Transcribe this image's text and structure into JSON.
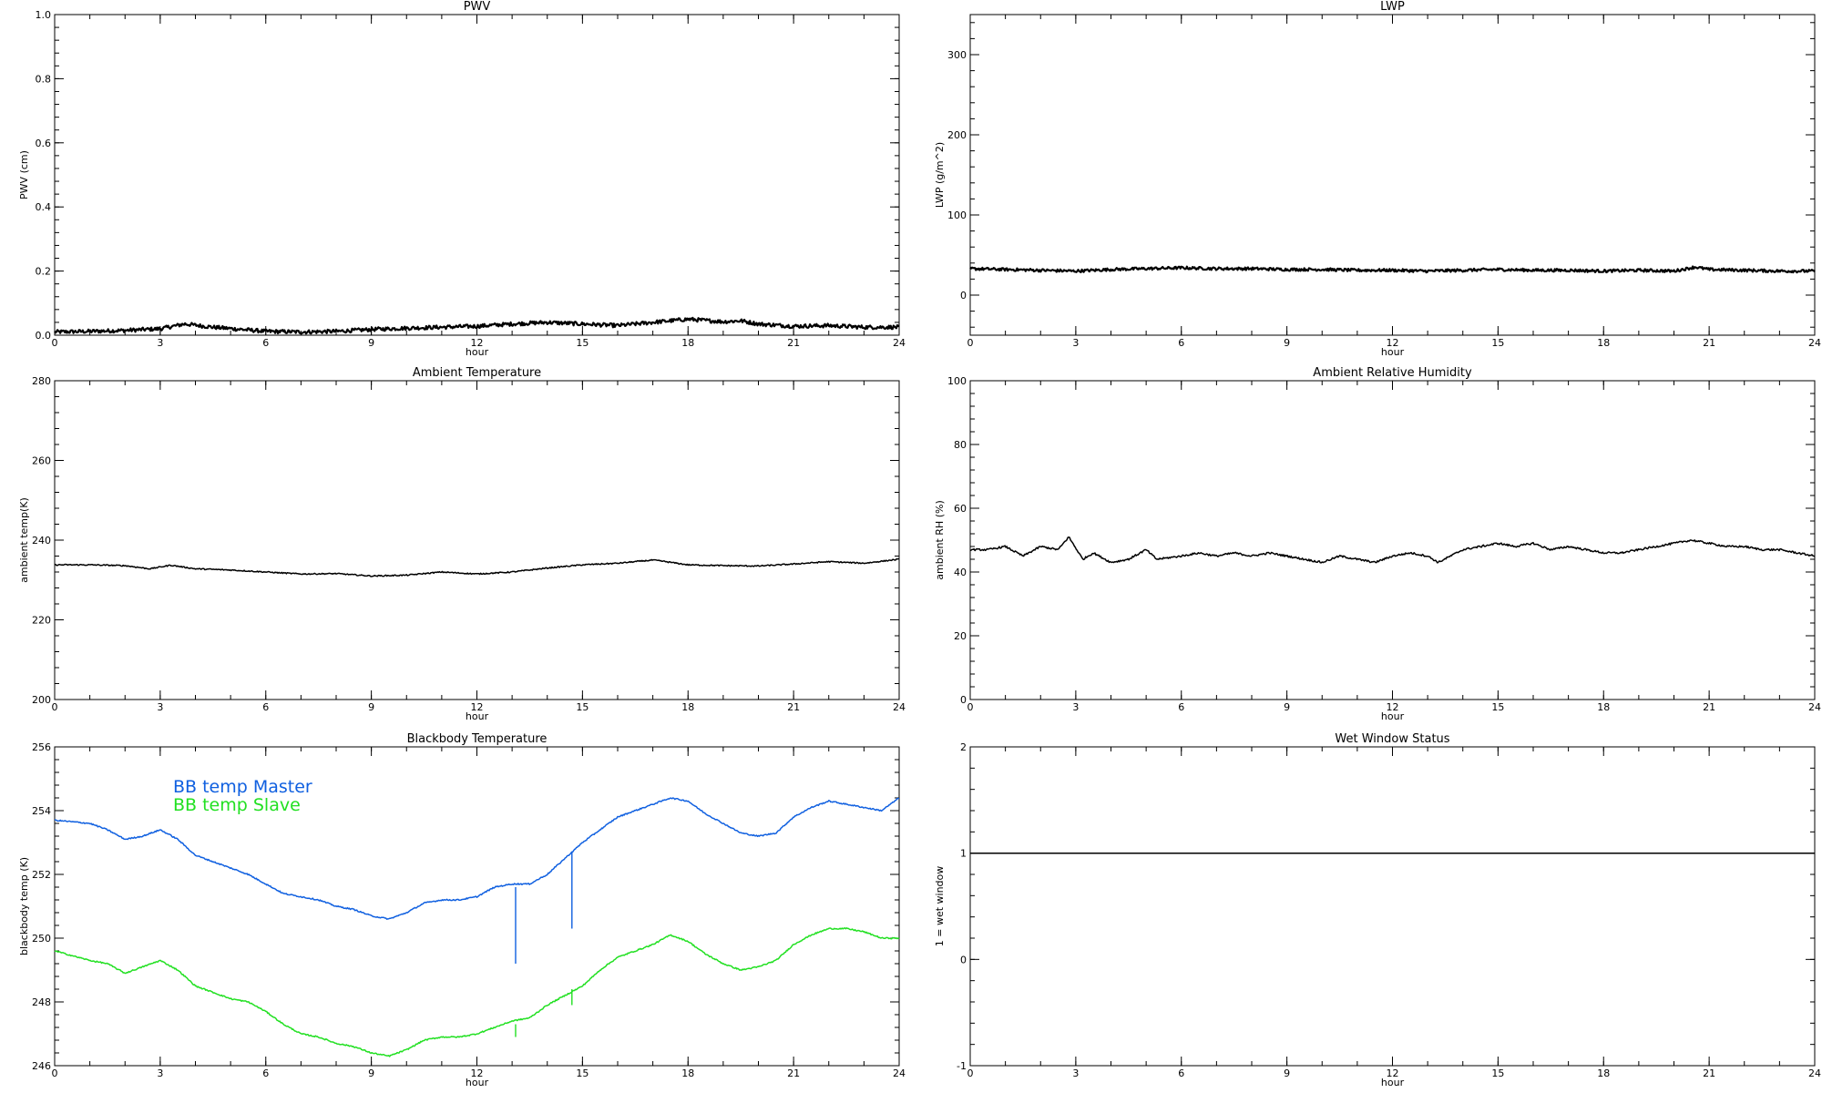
{
  "chart_data": [
    {
      "type": "line",
      "title": "PWV",
      "xlabel": "hour",
      "ylabel": "PWV (cm)",
      "xlim": [
        0,
        24
      ],
      "ylim": [
        0,
        1
      ],
      "x_ticks": [
        "0",
        "3",
        "6",
        "9",
        "12",
        "15",
        "18",
        "21",
        "24"
      ],
      "y_ticks": [
        "0.0",
        "0.2",
        "0.4",
        "0.6",
        "0.8",
        "1.0"
      ],
      "series": [
        {
          "color": "#000000",
          "noise": 0.006,
          "x": [
            0,
            1,
            2,
            3,
            3.7,
            4.5,
            6,
            7,
            8,
            9,
            10,
            11,
            12,
            13,
            14,
            15,
            16,
            17,
            18,
            19,
            19.5,
            20,
            21,
            22,
            23,
            24
          ],
          "y": [
            0.01,
            0.012,
            0.015,
            0.02,
            0.035,
            0.025,
            0.012,
            0.01,
            0.012,
            0.018,
            0.022,
            0.025,
            0.028,
            0.035,
            0.04,
            0.035,
            0.03,
            0.04,
            0.05,
            0.042,
            0.045,
            0.035,
            0.028,
            0.03,
            0.025,
            0.025
          ]
        }
      ]
    },
    {
      "type": "line",
      "title": "LWP",
      "xlabel": "hour",
      "ylabel": "LWP (g/m^2)",
      "xlim": [
        0,
        24
      ],
      "ylim": [
        -50,
        350
      ],
      "x_ticks": [
        "0",
        "3",
        "6",
        "9",
        "12",
        "15",
        "18",
        "21",
        "24"
      ],
      "y_ticks": [
        "0",
        "100",
        "200",
        "300"
      ],
      "series": [
        {
          "color": "#000000",
          "noise": 1.8,
          "x": [
            0,
            1,
            2,
            3,
            4,
            5,
            6,
            7,
            8,
            9,
            10,
            11,
            12,
            13,
            14,
            15,
            16,
            17,
            18,
            19,
            20,
            20.6,
            21,
            22,
            23,
            24
          ],
          "y": [
            33,
            32,
            31,
            30,
            32,
            33,
            34,
            33,
            33,
            32,
            32,
            31,
            31,
            30,
            31,
            32,
            31,
            31,
            30,
            31,
            30,
            35,
            32,
            31,
            30,
            30
          ]
        }
      ]
    },
    {
      "type": "line",
      "title": "Ambient Temperature",
      "xlabel": "hour",
      "ylabel": "ambient temp(K)",
      "xlim": [
        0,
        24
      ],
      "ylim": [
        200,
        280
      ],
      "x_ticks": [
        "0",
        "3",
        "6",
        "9",
        "12",
        "15",
        "18",
        "21",
        "24"
      ],
      "y_ticks": [
        "200",
        "220",
        "240",
        "260",
        "280"
      ],
      "series": [
        {
          "color": "#000000",
          "noise": 0.15,
          "x": [
            0,
            1,
            2,
            2.7,
            3.3,
            4,
            5,
            6,
            7,
            8,
            9,
            10,
            11,
            12,
            13,
            14,
            15,
            16,
            17,
            17.2,
            18,
            19,
            20,
            21,
            22,
            23,
            24
          ],
          "y": [
            233.8,
            233.8,
            233.6,
            232.8,
            233.7,
            232.8,
            232.5,
            232.0,
            231.5,
            231.6,
            231.0,
            231.2,
            232.0,
            231.5,
            232.0,
            233.0,
            233.8,
            234.2,
            235.0,
            234.8,
            233.8,
            233.6,
            233.5,
            234.0,
            234.6,
            234.2,
            235.2
          ]
        }
      ]
    },
    {
      "type": "line",
      "title": "Ambient Relative Humidity",
      "xlabel": "hour",
      "ylabel": "ambient RH (%)",
      "xlim": [
        0,
        24
      ],
      "ylim": [
        0,
        100
      ],
      "x_ticks": [
        "0",
        "3",
        "6",
        "9",
        "12",
        "15",
        "18",
        "21",
        "24"
      ],
      "y_ticks": [
        "0",
        "20",
        "40",
        "60",
        "80",
        "100"
      ],
      "series": [
        {
          "color": "#000000",
          "noise": 0.3,
          "x": [
            0,
            0.5,
            1,
            1.5,
            2,
            2.5,
            2.8,
            3.2,
            3.5,
            4,
            4.5,
            5,
            5.3,
            6,
            6.5,
            7,
            7.5,
            8,
            8.5,
            9,
            9.5,
            10,
            10.5,
            11,
            11.5,
            12,
            12.5,
            13,
            13.3,
            14,
            14.5,
            15,
            15.5,
            16,
            16.5,
            17,
            17.5,
            18,
            18.5,
            19,
            19.5,
            20,
            20.5,
            21,
            21.5,
            22,
            22.5,
            23,
            23.5,
            24
          ],
          "y": [
            47,
            47,
            48,
            45,
            48,
            47,
            51,
            44,
            46,
            43,
            44,
            47,
            44,
            45,
            46,
            45,
            46,
            45,
            46,
            45,
            44,
            43,
            45,
            44,
            43,
            45,
            46,
            45,
            43,
            47,
            48,
            49,
            48,
            49,
            47,
            48,
            47,
            46,
            46,
            47,
            48,
            49,
            50,
            49,
            48,
            48,
            47,
            47,
            46,
            45
          ]
        }
      ]
    },
    {
      "type": "line",
      "title": "Blackbody Temperature",
      "xlabel": "hour",
      "ylabel": "blackbody temp (K)",
      "xlim": [
        0,
        24
      ],
      "ylim": [
        246,
        256
      ],
      "x_ticks": [
        "0",
        "3",
        "6",
        "9",
        "12",
        "15",
        "18",
        "21",
        "24"
      ],
      "y_ticks": [
        "246",
        "248",
        "250",
        "252",
        "254",
        "256"
      ],
      "legend": [
        "BB temp Master",
        "BB temp Slave"
      ],
      "legend_position": "top-left",
      "series": [
        {
          "name": "BB temp Master",
          "color": "#1060e0",
          "noise": 0.02,
          "x": [
            0,
            1,
            1.5,
            2,
            2.5,
            3,
            3.5,
            4,
            5,
            5.5,
            6,
            6.5,
            7,
            7.5,
            8,
            8.5,
            9,
            9.5,
            10,
            10.5,
            11,
            11.5,
            12,
            12.5,
            13,
            13.5,
            14,
            14.5,
            15,
            15.5,
            16,
            16.5,
            17,
            17.5,
            18,
            18.5,
            19,
            19.5,
            20,
            20.5,
            21,
            21.5,
            22,
            22.5,
            23,
            23.5,
            24
          ],
          "y": [
            253.7,
            253.6,
            253.4,
            253.1,
            253.2,
            253.4,
            253.1,
            252.6,
            252.2,
            252.0,
            251.7,
            251.4,
            251.3,
            251.2,
            251.0,
            250.9,
            250.7,
            250.6,
            250.8,
            251.1,
            251.2,
            251.2,
            251.3,
            251.6,
            251.7,
            251.7,
            252.0,
            252.5,
            253.0,
            253.4,
            253.8,
            254.0,
            254.2,
            254.4,
            254.3,
            253.9,
            253.6,
            253.3,
            253.2,
            253.3,
            253.8,
            254.1,
            254.3,
            254.2,
            254.1,
            254.0,
            254.4
          ],
          "spikes": [
            {
              "x": 13.1,
              "y": [
                251.6,
                249.2
              ]
            },
            {
              "x": 14.7,
              "y": [
                252.7,
                250.3
              ]
            }
          ]
        },
        {
          "name": "BB temp Slave",
          "color": "#22e022",
          "noise": 0.02,
          "x": [
            0,
            1,
            1.5,
            2,
            2.5,
            3,
            3.5,
            4,
            5,
            5.5,
            6,
            6.5,
            7,
            7.5,
            8,
            8.5,
            9,
            9.5,
            10,
            10.5,
            11,
            11.5,
            12,
            12.5,
            13,
            13.5,
            14,
            14.5,
            15,
            15.5,
            16,
            16.5,
            17,
            17.5,
            18,
            18.5,
            19,
            19.5,
            20,
            20.5,
            21,
            21.5,
            22,
            22.5,
            23,
            23.5,
            24
          ],
          "y": [
            249.6,
            249.3,
            249.2,
            248.9,
            249.1,
            249.3,
            249.0,
            248.5,
            248.1,
            248.0,
            247.7,
            247.3,
            247.0,
            246.9,
            246.7,
            246.6,
            246.4,
            246.3,
            246.5,
            246.8,
            246.9,
            246.9,
            247.0,
            247.2,
            247.4,
            247.5,
            247.9,
            248.2,
            248.5,
            249.0,
            249.4,
            249.6,
            249.8,
            250.1,
            249.9,
            249.5,
            249.2,
            249.0,
            249.1,
            249.3,
            249.8,
            250.1,
            250.3,
            250.3,
            250.2,
            250.0,
            250.0
          ],
          "spikes": [
            {
              "x": 13.1,
              "y": [
                247.3,
                246.9
              ]
            },
            {
              "x": 14.7,
              "y": [
                248.4,
                247.9
              ]
            }
          ]
        }
      ]
    },
    {
      "type": "line",
      "title": "Wet Window Status",
      "xlabel": "hour",
      "ylabel": "1 = wet window",
      "xlim": [
        0,
        24
      ],
      "ylim": [
        -1,
        2
      ],
      "x_ticks": [
        "0",
        "3",
        "6",
        "9",
        "12",
        "15",
        "18",
        "21",
        "24"
      ],
      "y_ticks": [
        "-1",
        "0",
        "1",
        "2"
      ],
      "series": [
        {
          "color": "#000000",
          "noise": 0,
          "x": [
            0,
            24
          ],
          "y": [
            1,
            1
          ]
        }
      ]
    }
  ]
}
